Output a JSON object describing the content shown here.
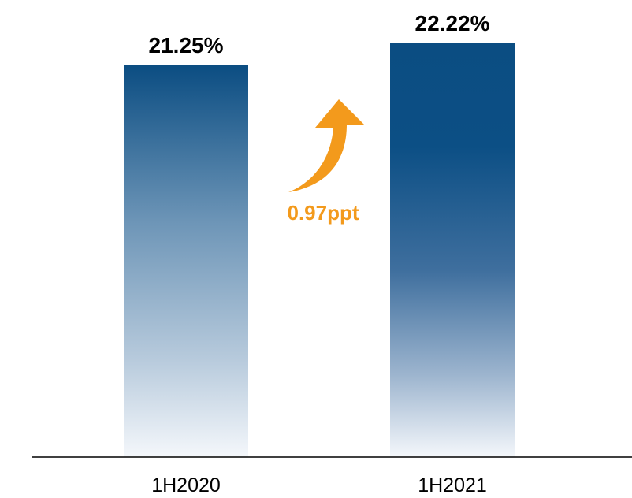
{
  "chart_data": {
    "type": "bar",
    "categories": [
      "1H2020",
      "1H2021"
    ],
    "values": [
      21.25,
      22.22
    ],
    "value_labels": [
      "21.25%",
      "22.22%"
    ],
    "annotation": {
      "text": "0.97ppt",
      "icon": "up-arrow-icon",
      "color": "#F39A1C"
    },
    "colors": {
      "bar_dark": "#0B4D82",
      "bar_light": "#F4F7FB",
      "axis": "#000000"
    },
    "grid": false,
    "legend": "none"
  }
}
